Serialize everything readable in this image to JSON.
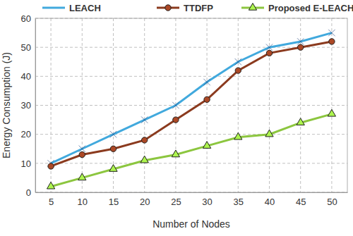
{
  "chart_data": {
    "type": "line",
    "x_label": "Number of Nodes",
    "y_label": "Energy Consumption (J)",
    "categories": [
      "5",
      "10",
      "15",
      "20",
      "25",
      "30",
      "35",
      "40",
      "45",
      "50"
    ],
    "series": [
      {
        "name": "LEACH",
        "color": "#41a9dd",
        "marker": "x",
        "line_style": "solid",
        "values": [
          10,
          15,
          20,
          25,
          30,
          38,
          45,
          50,
          52,
          55
        ]
      },
      {
        "name": "TTDFP",
        "color": "#8b3a1e",
        "marker": "circle",
        "line_style": "solid",
        "values": [
          9,
          13,
          15,
          18,
          25,
          32,
          42,
          48,
          50,
          52
        ]
      },
      {
        "name": "Proposed E-LEACH",
        "color": "#8cc63f",
        "marker": "triangle",
        "line_style": "solid",
        "values": [
          2,
          5,
          8,
          11,
          13,
          16,
          19,
          20,
          24,
          27
        ]
      }
    ],
    "ylim": [
      0,
      60
    ],
    "yticks": [
      0,
      10,
      20,
      30,
      40,
      50,
      60
    ],
    "grid": true,
    "legend": "top"
  }
}
